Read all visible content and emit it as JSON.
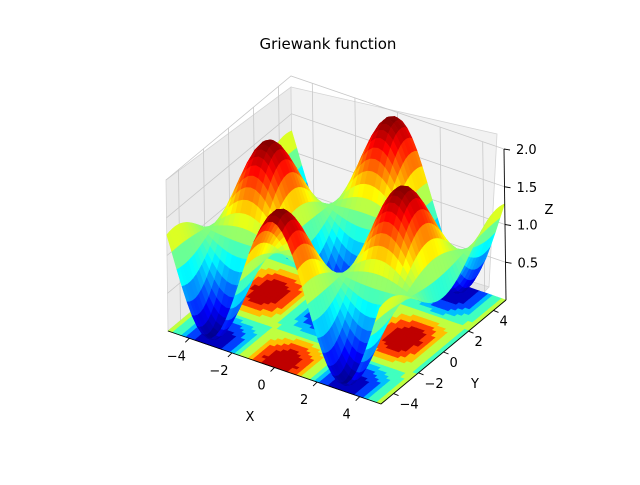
{
  "chart_data": {
    "type": "surface3d",
    "title": "Griewank function",
    "function": "Griewank",
    "xlabel": "X",
    "ylabel": "Y",
    "zlabel": "Z",
    "xlim": [
      -5,
      5
    ],
    "ylim": [
      -5,
      5
    ],
    "zlim": [
      0,
      2
    ],
    "xticks": [
      -4,
      -2,
      0,
      2,
      4
    ],
    "yticks": [
      -4,
      -2,
      0,
      2,
      4
    ],
    "zticks": [
      0.5,
      1.0,
      1.5,
      2.0
    ],
    "xtick_labels": [
      "−4",
      "−2",
      "0",
      "2",
      "4"
    ],
    "ytick_labels": [
      "−4",
      "−2",
      "0",
      "2",
      "4"
    ],
    "ztick_labels": [
      "0.5",
      "1.0",
      "1.5",
      "2.0"
    ],
    "colormap": "jet",
    "contour_projection": "bottom",
    "grid": true
  }
}
